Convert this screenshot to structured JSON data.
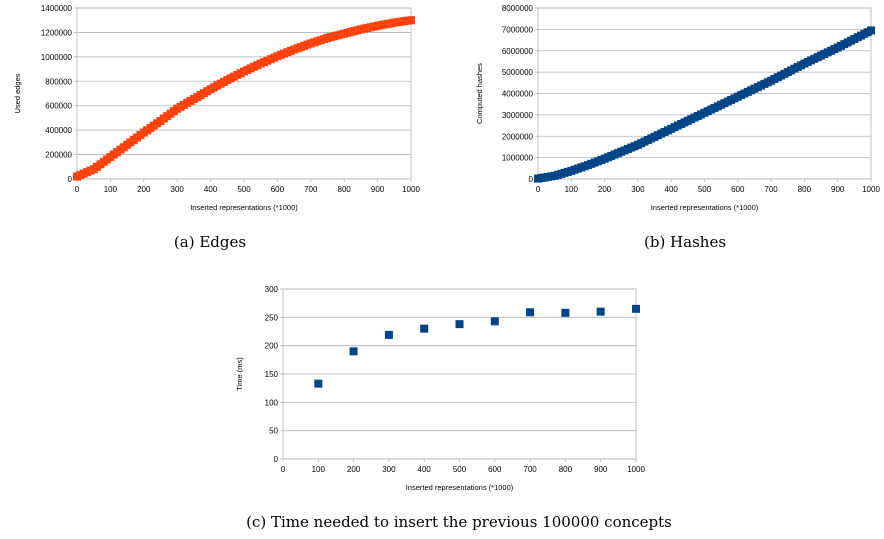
{
  "chart_data": [
    {
      "id": "edges",
      "type": "scatter",
      "caption": "(a) Edges",
      "xlabel": "Inserted representations (*1000)",
      "ylabel": "Used edges",
      "xlim": [
        0,
        1000
      ],
      "ylim": [
        0,
        1400000
      ],
      "xticks": [
        0,
        100,
        200,
        300,
        400,
        500,
        600,
        700,
        800,
        900,
        1000
      ],
      "yticks": [
        0,
        200000,
        400000,
        600000,
        800000,
        1000000,
        1200000,
        1400000
      ],
      "marker_color": "#ff420e",
      "marker_shape": "square",
      "x_step": 10,
      "anchors": {
        "x": [
          0,
          50,
          100,
          150,
          200,
          250,
          300,
          350,
          400,
          450,
          500,
          550,
          600,
          650,
          700,
          750,
          800,
          850,
          900,
          950,
          1000
        ],
        "y": [
          20000,
          80000,
          180000,
          280000,
          380000,
          475000,
          575000,
          655000,
          735000,
          810000,
          880000,
          945000,
          1005000,
          1060000,
          1110000,
          1155000,
          1190000,
          1225000,
          1255000,
          1280000,
          1300000
        ]
      }
    },
    {
      "id": "hashes",
      "type": "scatter",
      "caption": "(b) Hashes",
      "xlabel": "Inserted representations (*1000)",
      "ylabel": "Computed hashes",
      "xlim": [
        0,
        1000
      ],
      "ylim": [
        0,
        8000000
      ],
      "xticks": [
        0,
        100,
        200,
        300,
        400,
        500,
        600,
        700,
        800,
        900,
        1000
      ],
      "yticks": [
        0,
        1000000,
        2000000,
        3000000,
        4000000,
        5000000,
        6000000,
        7000000,
        8000000
      ],
      "marker_color": "#004586",
      "marker_shape": "square",
      "x_step": 10,
      "anchors": {
        "x": [
          0,
          50,
          100,
          150,
          200,
          300,
          400,
          500,
          600,
          700,
          800,
          900,
          1000
        ],
        "y": [
          20000,
          150000,
          380000,
          650000,
          950000,
          1600000,
          2350000,
          3100000,
          3850000,
          4600000,
          5400000,
          6150000,
          6950000
        ]
      }
    },
    {
      "id": "time",
      "type": "scatter",
      "caption": "(c) Time needed to insert the previous 100000 concepts",
      "xlabel": "Inserted representations (*1000)",
      "ylabel": "Time (ms)",
      "xlim": [
        0,
        1000
      ],
      "ylim": [
        0,
        300
      ],
      "xticks": [
        0,
        100,
        200,
        300,
        400,
        500,
        600,
        700,
        800,
        900,
        1000
      ],
      "yticks": [
        0,
        50,
        100,
        150,
        200,
        250,
        300
      ],
      "marker_color": "#004586",
      "marker_shape": "square",
      "points": {
        "x": [
          100,
          200,
          300,
          400,
          500,
          600,
          700,
          800,
          900,
          1000
        ],
        "y": [
          133,
          190,
          219,
          230,
          238,
          243,
          259,
          258,
          260,
          265
        ]
      }
    }
  ]
}
